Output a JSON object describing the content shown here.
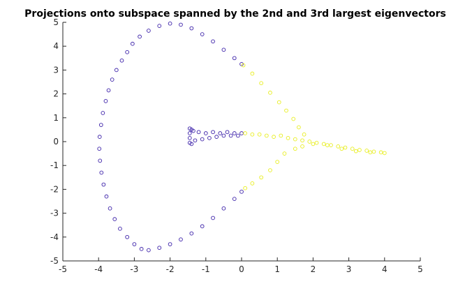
{
  "chart_data": {
    "type": "scatter",
    "title": "Projections onto subspace spanned by the 2nd and 3rd largest eigenvectors",
    "xlabel": "",
    "ylabel": "",
    "xlim": [
      -5,
      5
    ],
    "ylim": [
      -5,
      5
    ],
    "x_ticks": [
      "-5",
      "-4",
      "-3",
      "-2",
      "-1",
      "0",
      "1",
      "2",
      "3",
      "4",
      "5"
    ],
    "y_ticks": [
      "-5",
      "-4",
      "-3",
      "-2",
      "-1",
      "0",
      "1",
      "2",
      "3",
      "4",
      "5"
    ],
    "grid": false,
    "legend": "none",
    "marker": "open-circle",
    "series": [
      {
        "color": "#3a1fa8",
        "values": [
          [
            -2.0,
            4.95
          ],
          [
            -2.3,
            4.85
          ],
          [
            -2.6,
            4.65
          ],
          [
            -2.85,
            4.4
          ],
          [
            -3.05,
            4.1
          ],
          [
            -3.2,
            3.75
          ],
          [
            -3.35,
            3.4
          ],
          [
            -3.5,
            3.0
          ],
          [
            -3.62,
            2.6
          ],
          [
            -3.72,
            2.15
          ],
          [
            -3.8,
            1.7
          ],
          [
            -3.88,
            1.2
          ],
          [
            -3.93,
            0.7
          ],
          [
            -3.97,
            0.2
          ],
          [
            -3.98,
            -0.3
          ],
          [
            -3.96,
            -0.8
          ],
          [
            -3.92,
            -1.3
          ],
          [
            -3.86,
            -1.8
          ],
          [
            -3.78,
            -2.3
          ],
          [
            -3.68,
            -2.8
          ],
          [
            -3.55,
            -3.25
          ],
          [
            -3.4,
            -3.65
          ],
          [
            -3.2,
            -4.0
          ],
          [
            -3.0,
            -4.3
          ],
          [
            -2.8,
            -4.5
          ],
          [
            -2.6,
            -4.55
          ],
          [
            -2.3,
            -4.45
          ],
          [
            -2.0,
            -4.3
          ],
          [
            -1.7,
            -4.1
          ],
          [
            -1.4,
            -3.85
          ],
          [
            -1.1,
            -3.55
          ],
          [
            -0.8,
            -3.2
          ],
          [
            -0.5,
            -2.8
          ],
          [
            -0.2,
            -2.4
          ],
          [
            0.0,
            -2.1
          ],
          [
            -1.7,
            4.9
          ],
          [
            -1.4,
            4.75
          ],
          [
            -1.1,
            4.5
          ],
          [
            -0.8,
            4.2
          ],
          [
            -0.5,
            3.85
          ],
          [
            -0.2,
            3.5
          ],
          [
            0.0,
            3.25
          ],
          [
            -1.45,
            0.55
          ],
          [
            -1.45,
            0.35
          ],
          [
            -1.45,
            0.15
          ],
          [
            -1.45,
            -0.05
          ],
          [
            -1.4,
            0.5
          ],
          [
            -1.4,
            -0.1
          ],
          [
            -1.35,
            0.45
          ],
          [
            -1.3,
            0.05
          ],
          [
            -1.2,
            0.4
          ],
          [
            -1.1,
            0.1
          ],
          [
            -1.0,
            0.35
          ],
          [
            -0.9,
            0.15
          ],
          [
            -0.8,
            0.4
          ],
          [
            -0.7,
            0.2
          ],
          [
            -0.6,
            0.35
          ],
          [
            -0.5,
            0.25
          ],
          [
            -0.4,
            0.4
          ],
          [
            -0.3,
            0.25
          ],
          [
            -0.2,
            0.35
          ],
          [
            -0.1,
            0.25
          ],
          [
            0.0,
            0.35
          ]
        ]
      },
      {
        "color": "#e8ee1c",
        "values": [
          [
            0.05,
            3.2
          ],
          [
            0.3,
            2.85
          ],
          [
            0.55,
            2.45
          ],
          [
            0.8,
            2.05
          ],
          [
            1.05,
            1.65
          ],
          [
            1.25,
            1.3
          ],
          [
            1.45,
            0.95
          ],
          [
            1.6,
            0.6
          ],
          [
            1.75,
            0.3
          ],
          [
            1.2,
            -0.5
          ],
          [
            1.0,
            -0.85
          ],
          [
            0.8,
            -1.2
          ],
          [
            0.55,
            -1.5
          ],
          [
            0.3,
            -1.75
          ],
          [
            0.1,
            -1.95
          ],
          [
            0.1,
            0.35
          ],
          [
            0.3,
            0.3
          ],
          [
            0.5,
            0.3
          ],
          [
            0.7,
            0.25
          ],
          [
            0.9,
            0.2
          ],
          [
            1.1,
            0.25
          ],
          [
            1.3,
            0.15
          ],
          [
            1.5,
            0.1
          ],
          [
            1.7,
            0.05
          ],
          [
            1.9,
            0.0
          ],
          [
            2.1,
            -0.05
          ],
          [
            2.3,
            -0.1
          ],
          [
            2.5,
            -0.15
          ],
          [
            2.7,
            -0.2
          ],
          [
            2.9,
            -0.25
          ],
          [
            3.1,
            -0.3
          ],
          [
            3.3,
            -0.35
          ],
          [
            3.5,
            -0.38
          ],
          [
            3.7,
            -0.42
          ],
          [
            3.9,
            -0.45
          ],
          [
            4.0,
            -0.48
          ],
          [
            1.5,
            -0.3
          ],
          [
            1.7,
            -0.2
          ],
          [
            2.0,
            -0.1
          ],
          [
            2.4,
            -0.15
          ],
          [
            2.8,
            -0.3
          ],
          [
            3.2,
            -0.4
          ],
          [
            3.6,
            -0.45
          ]
        ]
      }
    ]
  }
}
